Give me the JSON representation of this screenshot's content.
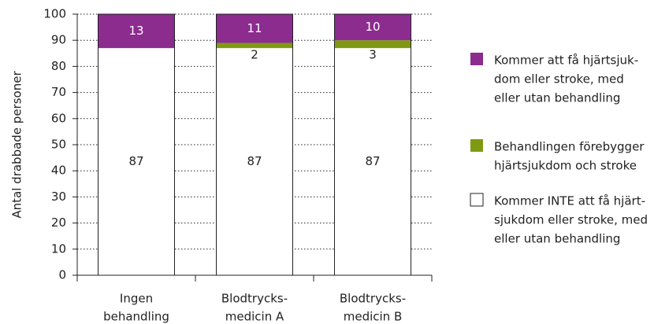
{
  "chart_data": {
    "type": "stacked_bar",
    "ylabel": "Antal drabbade personer",
    "categories": [
      [
        "Ingen",
        "behandling"
      ],
      [
        "Blodtrycks-",
        "medicin A"
      ],
      [
        "Blodtrycks-",
        "medicin B"
      ]
    ],
    "series": [
      {
        "name": [
          "Kommer INTE att få hjärt-",
          "sjukdom eller stroke, med",
          "eller utan behandling"
        ],
        "color": "#ffffff",
        "values": [
          87,
          87,
          87
        ]
      },
      {
        "name": [
          "Behandlingen förebygger",
          "hjärtsjukdom och stroke"
        ],
        "color": "#7f9a12",
        "values": [
          0,
          2,
          3
        ]
      },
      {
        "name": [
          "Kommer att få hjärtsjuk-",
          "dom eller stroke, med",
          "eller utan behandling"
        ],
        "color": "#8b2c8e",
        "values": [
          13,
          11,
          10
        ]
      }
    ],
    "ylim": [
      0,
      100
    ],
    "yticks": [
      0,
      10,
      20,
      30,
      40,
      50,
      60,
      70,
      80,
      90,
      100
    ],
    "grid": true
  }
}
